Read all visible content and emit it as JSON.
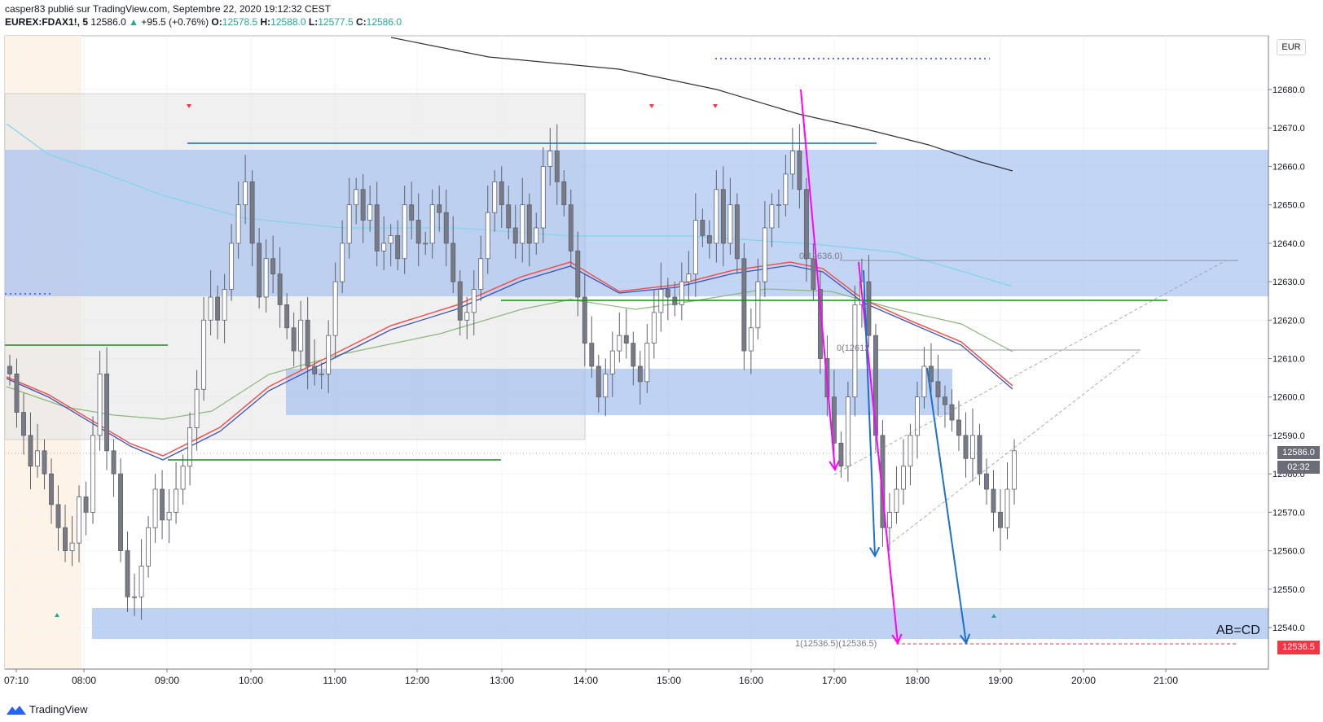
{
  "header": {
    "line1": "casper83 publié sur TradingView.com, Septembre 22, 2020 19:12:32 CEST",
    "symbol": "EUREX:FDAX1!, 5",
    "last": "12586.0",
    "change": "+95.5 (+0.76%)",
    "open_label": "O:",
    "open": "12578.5",
    "high_label": "H:",
    "high": "12588.0",
    "low_label": "L:",
    "low": "12577.5",
    "close_label": "C:",
    "close": "12586.0"
  },
  "currency": "EUR",
  "last_price_tag": "12586.0",
  "countdown_tag": "02:32",
  "target_price_tag": "12536.5",
  "annotation_abcd": "AB=CD",
  "fib_labels": {
    "top": "0(12636.0)",
    "mid": "0(12612",
    "bottom": "1(12536.5)(12536.5)"
  },
  "footer_brand": "TradingView",
  "colors": {
    "up": "#ffffff",
    "down": "#787b86",
    "wick": "#5d606b",
    "zone": "#a3bff0",
    "grey_box": "#e6e6e6",
    "ema_red": "#ef5350",
    "ema_blue": "#3f51b5",
    "sma_green": "#8bb87a",
    "sma_cyan": "#7fd5ec",
    "sma_black": "#333333",
    "hline_green": "#1b8b1b",
    "hline_blue": "#1565c0",
    "arrow_magenta": "#ff00ff",
    "arrow_blue": "#1e6fd0"
  },
  "chart_data": {
    "type": "candlestick",
    "y_axis": {
      "min": 12530,
      "max": 12690,
      "ticks": [
        12540.0,
        12550.0,
        12560.0,
        12570.0,
        12580.0,
        12590.0,
        12600.0,
        12610.0,
        12620.0,
        12630.0,
        12640.0,
        12650.0,
        12660.0,
        12670.0,
        12680.0
      ]
    },
    "x_axis": {
      "ticks": [
        "07:10",
        "08:00",
        "09:00",
        "10:00",
        "11:00",
        "12:00",
        "13:00",
        "14:00",
        "15:00",
        "16:00",
        "17:00",
        "18:00",
        "19:00",
        "20:00",
        "21:00"
      ]
    },
    "candle_closes_approx": [
      12606,
      12596,
      12590,
      12582,
      12586,
      12580,
      12572,
      12566,
      12560,
      12562,
      12574,
      12570,
      12590,
      12606,
      12586,
      12580,
      12560,
      12548,
      12548,
      12556,
      12566,
      12576,
      12568,
      12570,
      12576,
      12582,
      12592,
      12602,
      12620,
      12626,
      12620,
      12628,
      12640,
      12650,
      12656,
      12640,
      12626,
      12636,
      12632,
      12624,
      12618,
      12612,
      12620,
      12608,
      12606,
      12606,
      12616,
      12630,
      12640,
      12650,
      12654,
      12646,
      12650,
      12638,
      12640,
      12642,
      12636,
      12650,
      12646,
      12640,
      12640,
      12650,
      12648,
      12640,
      12630,
      12620,
      12622,
      12628,
      12636,
      12648,
      12656,
      12650,
      12644,
      12640,
      12650,
      12640,
      12644,
      12660,
      12664,
      12656,
      12650,
      12638,
      12626,
      12614,
      12608,
      12600,
      12606,
      12612,
      12616,
      12614,
      12608,
      12604,
      12614,
      12622,
      12628,
      12626,
      12624,
      12630,
      12632,
      12646,
      12642,
      12640,
      12654,
      12640,
      12650,
      12636,
      12612,
      12618,
      12630,
      12644,
      12650,
      12650,
      12658,
      12664,
      12654,
      12636,
      12628,
      12610,
      12600,
      12588,
      12582,
      12600,
      12624,
      12630,
      12616,
      12590,
      12566,
      12570,
      12576,
      12582,
      12590,
      12600,
      12608,
      12604,
      12600,
      12598,
      12594,
      12590,
      12584,
      12590,
      12580,
      12576,
      12570,
      12566,
      12576,
      12586
    ]
  }
}
